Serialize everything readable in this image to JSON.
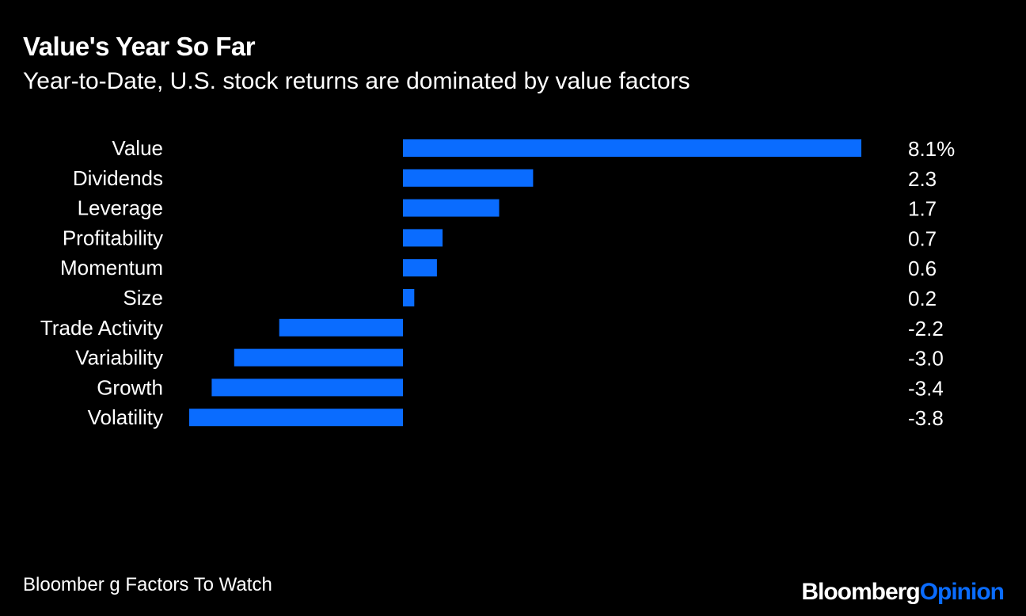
{
  "title": "Value's Year So Far",
  "subtitle": "Year-to-Date, U.S. stock returns are dominated by value factors",
  "source": "Bloomber g Factors To Watch",
  "brand": {
    "name": "Bloomberg",
    "section": "Opinion"
  },
  "colors": {
    "background": "#000000",
    "bar": "#0a6cff",
    "text": "#ffffff",
    "brand_accent": "#0a6cff"
  },
  "chart_data": {
    "type": "bar",
    "orientation": "horizontal",
    "categories": [
      "Value",
      "Dividends",
      "Leverage",
      "Profitability",
      "Momentum",
      "Size",
      "Trade Activity",
      "Variability",
      "Growth",
      "Volatility"
    ],
    "values": [
      8.1,
      2.3,
      1.7,
      0.7,
      0.6,
      0.2,
      -2.2,
      -3.0,
      -3.4,
      -3.8
    ],
    "value_labels": [
      "8.1%",
      "2.3",
      "1.7",
      "0.7",
      "0.6",
      "0.2",
      "-2.2",
      "-3.0",
      "-3.4",
      "-3.8"
    ],
    "unit": "%",
    "xlim": [
      -3.8,
      8.1
    ],
    "grid": false,
    "legend": "none"
  }
}
